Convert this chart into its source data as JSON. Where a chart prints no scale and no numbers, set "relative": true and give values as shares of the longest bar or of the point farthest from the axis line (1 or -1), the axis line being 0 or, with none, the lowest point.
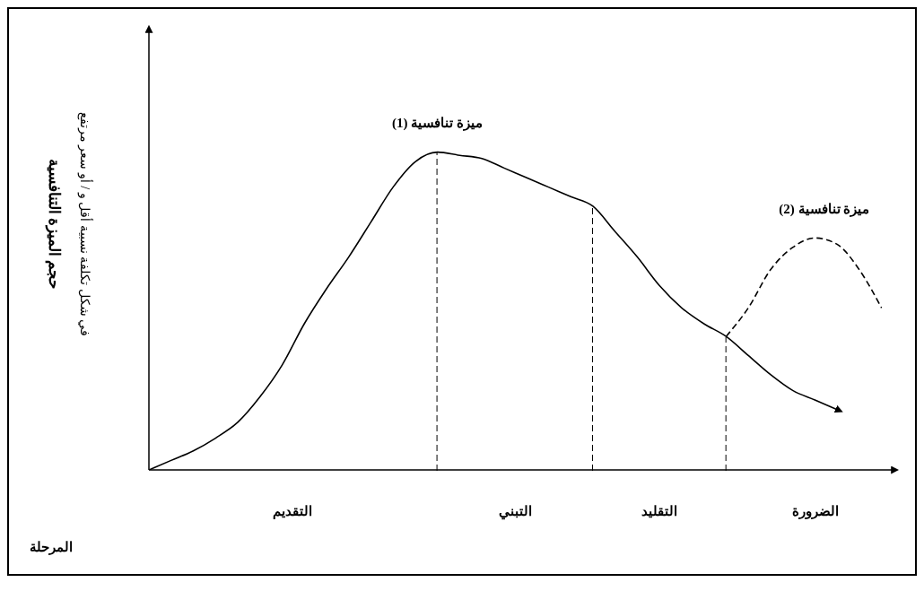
{
  "chart_data": {
    "type": "line",
    "relative": true,
    "ylabel": "حجم الميزة التنافسية\nفي شكل تكلفة نسبية أقل و / أو سعر مرتفع",
    "categories": [
      null,
      null,
      null,
      null,
      null,
      null,
      null,
      null,
      null,
      null,
      null,
      null,
      null,
      null,
      null,
      null,
      null,
      null,
      null,
      null,
      null,
      null,
      null,
      null,
      null,
      null,
      null,
      null,
      null,
      null,
      null,
      null,
      null,
      null
    ],
    "series": [
      {
        "name": "ميزة تنافسية (1)",
        "color": "#000000",
        "line_style": "solid",
        "values": [
          0,
          0.03,
          0.06,
          0.1,
          0.15,
          0.23,
          0.33,
          0.46,
          0.57,
          0.67,
          0.78,
          0.89,
          0.97,
          1,
          0.99,
          0.98,
          0.95,
          0.92,
          0.89,
          0.86,
          0.83,
          0.75,
          0.67,
          0.58,
          0.51,
          0.46,
          0.42,
          0.36,
          0.3,
          0.25,
          0.22,
          0.19,
          null,
          null
        ]
      },
      {
        "name": "ميزة تنافسية (2)",
        "color": "#000000",
        "line_style": "dashed",
        "values": [
          null,
          null,
          null,
          null,
          null,
          null,
          null,
          null,
          null,
          null,
          null,
          null,
          null,
          null,
          null,
          null,
          null,
          null,
          null,
          null,
          null,
          null,
          null,
          null,
          null,
          null,
          0.42,
          0.51,
          0.63,
          0.7,
          0.73,
          0.71,
          0.63,
          0.51
        ]
      }
    ],
    "annotations": [
      "التقديم",
      "التبني",
      "التقليد",
      "الضرورة",
      "المرحلة"
    ],
    "grid": false,
    "legend": false,
    "marker": "none"
  }
}
